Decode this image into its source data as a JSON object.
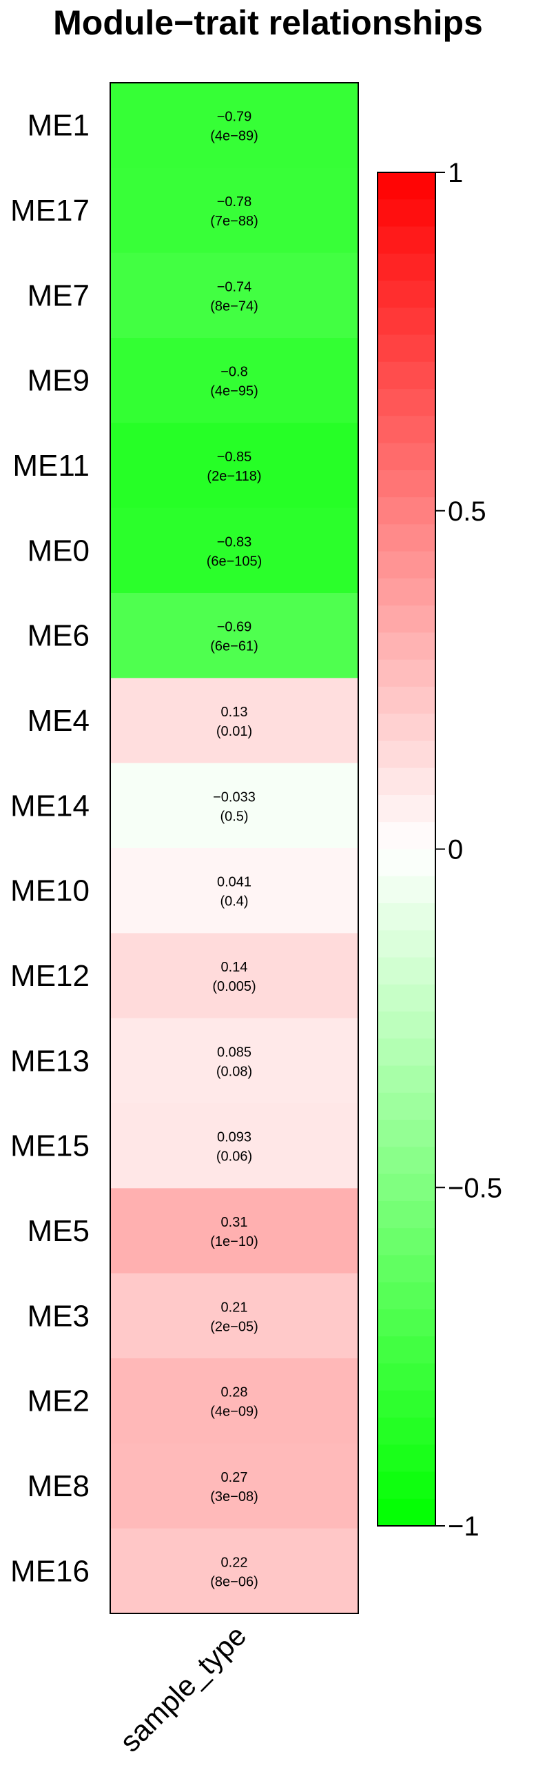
{
  "chart_data": {
    "type": "heatmap",
    "title": "Module−trait relationships",
    "columns": [
      "sample_type"
    ],
    "rows": [
      {
        "name": "ME1",
        "value": -0.79,
        "label": "−0.79",
        "pvalue": "(4e−89)"
      },
      {
        "name": "ME17",
        "value": -0.78,
        "label": "−0.78",
        "pvalue": "(7e−88)"
      },
      {
        "name": "ME7",
        "value": -0.74,
        "label": "−0.74",
        "pvalue": "(8e−74)"
      },
      {
        "name": "ME9",
        "value": -0.8,
        "label": "−0.8",
        "pvalue": "(4e−95)"
      },
      {
        "name": "ME11",
        "value": -0.85,
        "label": "−0.85",
        "pvalue": "(2e−118)"
      },
      {
        "name": "ME0",
        "value": -0.83,
        "label": "−0.83",
        "pvalue": "(6e−105)"
      },
      {
        "name": "ME6",
        "value": -0.69,
        "label": "−0.69",
        "pvalue": "(6e−61)"
      },
      {
        "name": "ME4",
        "value": 0.13,
        "label": "0.13",
        "pvalue": "(0.01)"
      },
      {
        "name": "ME14",
        "value": -0.033,
        "label": "−0.033",
        "pvalue": "(0.5)"
      },
      {
        "name": "ME10",
        "value": 0.041,
        "label": "0.041",
        "pvalue": "(0.4)"
      },
      {
        "name": "ME12",
        "value": 0.14,
        "label": "0.14",
        "pvalue": "(0.005)"
      },
      {
        "name": "ME13",
        "value": 0.085,
        "label": "0.085",
        "pvalue": "(0.08)"
      },
      {
        "name": "ME15",
        "value": 0.093,
        "label": "0.093",
        "pvalue": "(0.06)"
      },
      {
        "name": "ME5",
        "value": 0.31,
        "label": "0.31",
        "pvalue": "(1e−10)"
      },
      {
        "name": "ME3",
        "value": 0.21,
        "label": "0.21",
        "pvalue": "(2e−05)"
      },
      {
        "name": "ME2",
        "value": 0.28,
        "label": "0.28",
        "pvalue": "(4e−09)"
      },
      {
        "name": "ME8",
        "value": 0.27,
        "label": "0.27",
        "pvalue": "(3e−08)"
      },
      {
        "name": "ME16",
        "value": 0.22,
        "label": "0.22",
        "pvalue": "(8e−06)"
      }
    ],
    "colorbar": {
      "range": [
        -1,
        1
      ],
      "ticks": [
        {
          "value": 1,
          "label": "1"
        },
        {
          "value": 0.5,
          "label": "0.5"
        },
        {
          "value": 0,
          "label": "0"
        },
        {
          "value": -0.5,
          "label": "−0.5"
        },
        {
          "value": -1,
          "label": "−1"
        }
      ],
      "colors": {
        "low": "#00ff00",
        "mid": "#ffffff",
        "high": "#ff0000"
      }
    }
  }
}
